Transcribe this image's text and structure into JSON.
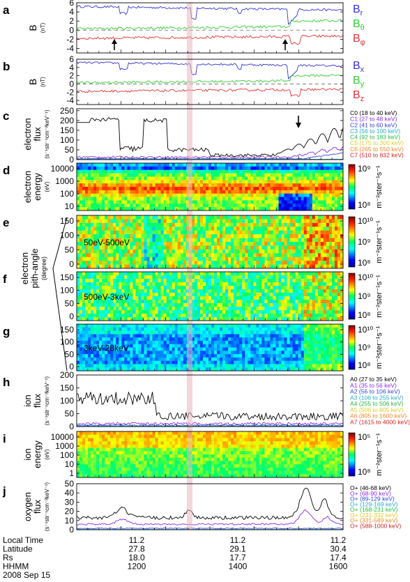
{
  "chart_data": {
    "type": "multi-panel",
    "x_axis": {
      "rows": [
        {
          "name": "Local Time",
          "values": [
            "11.2",
            "11.2",
            "11.2"
          ]
        },
        {
          "name": "Latitude",
          "values": [
            "27.8",
            "29.1",
            "30.4"
          ]
        },
        {
          "name": "Rs",
          "values": [
            "18.0",
            "17.7",
            "17.4"
          ]
        },
        {
          "name": "HHMM",
          "values": [
            "1200",
            "1400",
            "1600"
          ]
        }
      ],
      "date": "2008 Sep 15"
    },
    "shared_ylabel": {
      "main": "electron",
      "sub": "pith-angle",
      "unit": "(degree)"
    },
    "panels": [
      {
        "letter": "a",
        "kind": "line",
        "ylabel": "B",
        "yunit": "(nT)",
        "yticks": [
          "6",
          "4",
          "2",
          "0",
          "-2",
          "-4"
        ],
        "ylim": [
          -5,
          6
        ],
        "series": [
          {
            "label": "B",
            "sub": "r",
            "color": "#3333cc"
          },
          {
            "label": "B",
            "sub": "θ",
            "color": "#33cc33"
          },
          {
            "label": "B",
            "sub": "φ",
            "color": "#dd3333"
          }
        ]
      },
      {
        "letter": "b",
        "kind": "line",
        "ylabel": "B",
        "yunit": "(nT)",
        "yticks": [
          "6",
          "4",
          "2",
          "0",
          "-2",
          "-4"
        ],
        "ylim": [
          -5,
          6
        ],
        "series": [
          {
            "label": "B",
            "sub": "x",
            "color": "#3333cc"
          },
          {
            "label": "B",
            "sub": "y",
            "color": "#33cc33"
          },
          {
            "label": "B",
            "sub": "z",
            "color": "#dd3333"
          }
        ]
      },
      {
        "letter": "c",
        "kind": "line",
        "ylabel": "electron",
        "ylabel2": "flux",
        "yunit": "(s⁻¹str⁻¹cm⁻²keV⁻¹)",
        "yticks": [
          "250",
          "200",
          "150",
          "100",
          "50",
          "0"
        ],
        "ylim": [
          0,
          260
        ],
        "legend": [
          {
            "text": "C0 (18 to 40 keV)",
            "color": "#000000"
          },
          {
            "text": "C1 (27 to 48 keV)",
            "color": "#8a2be2"
          },
          {
            "text": "C2 (41 to 60 keV)",
            "color": "#3344cc"
          },
          {
            "text": "C3 (56 to 100 keV)",
            "color": "#22aacc"
          },
          {
            "text": "C4 (92 to 183 keV)",
            "color": "#22bb44"
          },
          {
            "text": "C5 (175 to 300 keV)",
            "color": "#ddcc22"
          },
          {
            "text": "C6 (265 to 550 keV)",
            "color": "#ee8822"
          },
          {
            "text": "C7 (510 to 832 keV)",
            "color": "#cc2222"
          }
        ]
      },
      {
        "letter": "d",
        "kind": "spectrogram",
        "ylabel": "electron",
        "ylabel2": "energy",
        "yunit": "(eV)",
        "yticks": [
          "10000",
          "1000",
          "100",
          "10"
        ],
        "cbar": {
          "ticks": [
            "10⁹",
            "10⁸"
          ],
          "unit": "m⁻²ster⁻¹s⁻¹"
        }
      },
      {
        "letter": "e",
        "kind": "pitch",
        "range": "50eV-500eV",
        "yticks": [
          "150",
          "100",
          "50",
          "0"
        ],
        "cbar": {
          "ticks": [
            "10¹⁰",
            "10⁹",
            "10⁸"
          ],
          "unit": "m⁻²ster⁻¹s⁻¹"
        }
      },
      {
        "letter": "f",
        "kind": "pitch",
        "range": "500eV-3keV",
        "yticks": [
          "150",
          "100",
          "50",
          "0"
        ],
        "cbar": {
          "ticks": [
            "10¹⁰",
            "10⁹",
            "10⁸"
          ],
          "unit": "m⁻²ster⁻¹s⁻¹"
        }
      },
      {
        "letter": "g",
        "kind": "pitch",
        "range": "3keV-28keV",
        "yticks": [
          "150",
          "100",
          "50",
          "0"
        ],
        "cbar": {
          "ticks": [
            "10¹⁰",
            "10⁹",
            "10⁸"
          ],
          "unit": "m⁻²ster⁻¹s⁻¹"
        }
      },
      {
        "letter": "h",
        "kind": "line",
        "ylabel": "ion",
        "ylabel2": "flux",
        "yunit": "(s⁻¹str⁻¹cm⁻²keV⁻¹)",
        "yticks": [
          "200",
          "150",
          "100",
          "50",
          "0"
        ],
        "ylim": [
          0,
          200
        ],
        "legend": [
          {
            "text": "A0 (27 to 35 keV)",
            "color": "#000000"
          },
          {
            "text": "A1 (35 to 56 keV)",
            "color": "#8a2be2"
          },
          {
            "text": "A2 (56 to 106 keV)",
            "color": "#3344cc"
          },
          {
            "text": "A3 (106 to 255 keV)",
            "color": "#22aacc"
          },
          {
            "text": "A4 (255 to 506 keV)",
            "color": "#22bb44"
          },
          {
            "text": "A5 (506 to 805 keV)",
            "color": "#ddcc22"
          },
          {
            "text": "A6 (805 to 1600 keV)",
            "color": "#ee8822"
          },
          {
            "text": "A7 (1615 to 4000 keV)",
            "color": "#cc2222"
          }
        ]
      },
      {
        "letter": "i",
        "kind": "spectrogram",
        "ylabel": "ion",
        "ylabel2": "energy",
        "yunit": "(eV)",
        "yticks": [
          "10000",
          "1000",
          "100",
          "10",
          "1"
        ],
        "cbar": {
          "ticks": [
            "10⁵",
            "10⁸"
          ],
          "unit": "m⁻²ster⁻¹s⁻¹"
        }
      },
      {
        "letter": "j",
        "kind": "line",
        "ylabel": "oxygen",
        "ylabel2": "flux",
        "yunit": "(s⁻¹str⁻¹cm⁻²keV⁻¹)",
        "yticks": [
          "50",
          "40",
          "30",
          "20",
          "10",
          "0"
        ],
        "ylim": [
          0,
          50
        ],
        "legend": [
          {
            "text": "O+ (46-68 keV)",
            "color": "#000000"
          },
          {
            "text": "O+ (68-90 keV)",
            "color": "#8a2be2"
          },
          {
            "text": "O+ (89-129 keV)",
            "color": "#3344cc"
          },
          {
            "text": "O+ (129-169 keV)",
            "color": "#22aacc"
          },
          {
            "text": "O+ (168-231 keV)",
            "color": "#22bb44"
          },
          {
            "text": "O+ (231-332 keV)",
            "color": "#ddcc22"
          },
          {
            "text": "O+ (331-589 keV)",
            "color": "#ee8822"
          },
          {
            "text": "O+ (588-1000 keV)",
            "color": "#cc2222"
          }
        ]
      }
    ]
  }
}
